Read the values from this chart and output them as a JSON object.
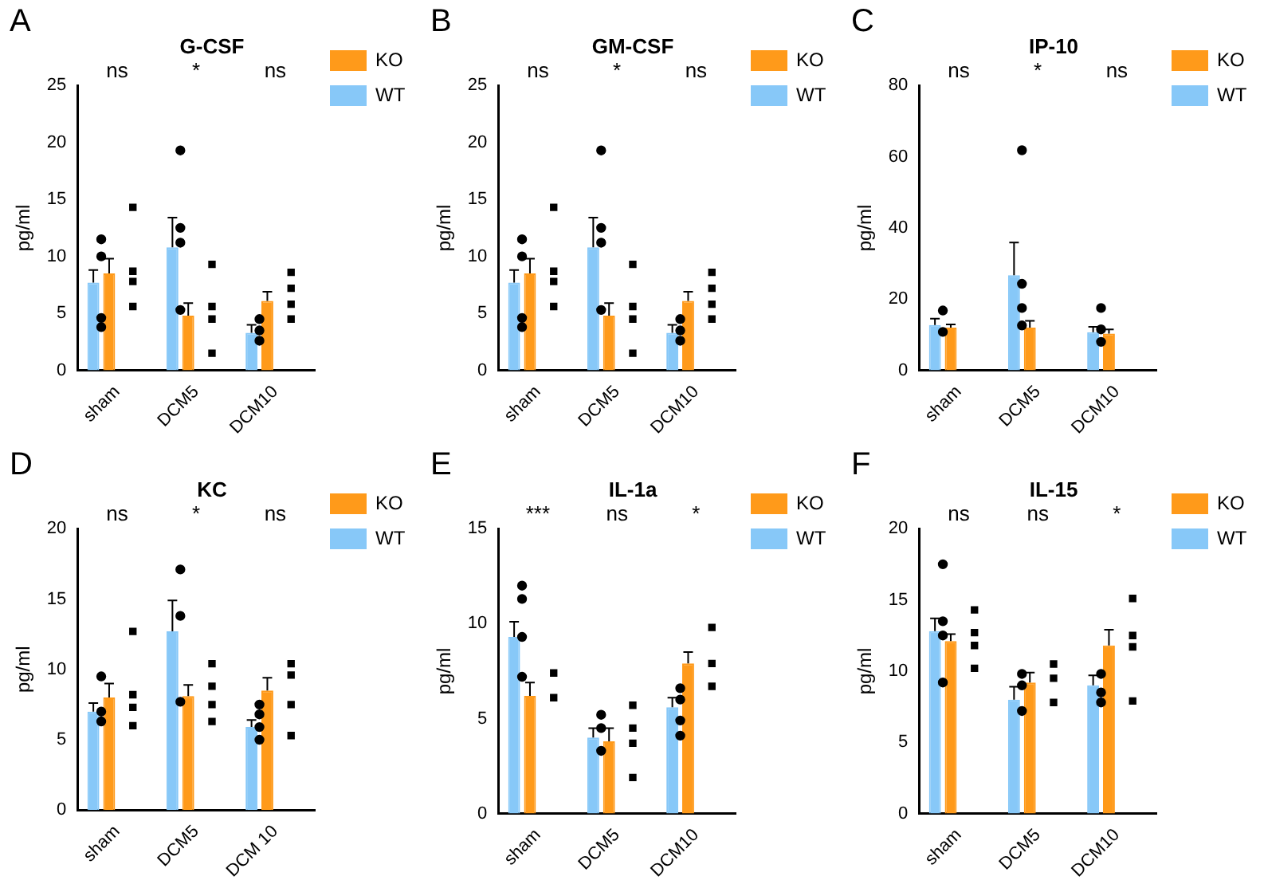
{
  "chart_data": [
    {
      "type": "bar",
      "title": "G-CSF",
      "ylabel": "pg/ml",
      "categories": [
        "sham",
        "DCM5",
        "DCM10"
      ],
      "ylim": [
        0,
        25
      ],
      "yticks": [
        0,
        5,
        10,
        15,
        20,
        25
      ],
      "grid": false,
      "legend": "top right",
      "annotations": [
        "A",
        "ns",
        "*",
        "ns"
      ],
      "series": [
        {
          "name": "WT",
          "color": "#87c8f8",
          "values": [
            7.7,
            10.8,
            3.3
          ],
          "errors": [
            [
              7.7,
              8.8
            ],
            [
              10.8,
              13.4
            ],
            [
              3.3,
              4.0
            ]
          ]
        },
        {
          "name": "KO",
          "color": "#ff9a1a",
          "values": [
            8.5,
            4.8,
            6.1
          ],
          "errors": [
            [
              8.5,
              9.8
            ],
            [
              4.8,
              5.9
            ],
            [
              6.1,
              6.9
            ]
          ]
        },
        {
          "type": "scatter",
          "color": "#000000",
          "marker": "circle",
          "x": [
            "sham",
            "sham",
            "sham",
            "sham",
            "DCM5",
            "DCM5",
            "DCM5",
            "DCM5",
            "DCM10",
            "DCM10",
            "DCM10"
          ],
          "values": [
            11.5,
            10.0,
            4.6,
            3.8,
            19.3,
            12.5,
            11.2,
            5.3,
            4.5,
            3.5,
            2.6
          ]
        },
        {
          "type": "scatter",
          "color": "#000000",
          "marker": "square",
          "x": [
            "sham",
            "sham",
            "sham",
            "sham",
            "DCM5",
            "DCM5",
            "DCM5",
            "DCM5",
            "DCM10",
            "DCM10",
            "DCM10",
            "DCM10"
          ],
          "values": [
            14.3,
            8.7,
            7.8,
            5.6,
            9.3,
            5.6,
            4.5,
            1.5,
            8.6,
            7.2,
            5.8,
            4.5
          ]
        }
      ]
    },
    {
      "type": "bar",
      "title": "GM-CSF",
      "ylabel": "pg/ml",
      "categories": [
        "sham",
        "DCM5",
        "DCM10"
      ],
      "ylim": [
        0,
        25
      ],
      "yticks": [
        0,
        5,
        10,
        15,
        20,
        25
      ],
      "grid": false,
      "legend": "top right",
      "annotations": [
        "B",
        "ns",
        "*",
        "ns"
      ],
      "series": [
        {
          "name": "WT",
          "color": "#87c8f8",
          "values": [
            7.7,
            10.8,
            3.3
          ],
          "errors": [
            [
              7.7,
              8.8
            ],
            [
              10.8,
              13.4
            ],
            [
              3.3,
              4.0
            ]
          ]
        },
        {
          "name": "KO",
          "color": "#ff9a1a",
          "values": [
            8.5,
            4.8,
            6.1
          ],
          "errors": [
            [
              8.5,
              9.8
            ],
            [
              4.8,
              5.9
            ],
            [
              6.1,
              6.9
            ]
          ]
        },
        {
          "type": "scatter",
          "color": "#000000",
          "marker": "circle",
          "x": [
            "sham",
            "sham",
            "sham",
            "sham",
            "DCM5",
            "DCM5",
            "DCM5",
            "DCM5",
            "DCM10",
            "DCM10",
            "DCM10"
          ],
          "values": [
            11.5,
            10.0,
            4.6,
            3.8,
            19.3,
            12.5,
            11.2,
            5.3,
            4.5,
            3.5,
            2.6
          ]
        },
        {
          "type": "scatter",
          "color": "#000000",
          "marker": "square",
          "x": [
            "sham",
            "sham",
            "sham",
            "sham",
            "DCM5",
            "DCM5",
            "DCM5",
            "DCM5",
            "DCM10",
            "DCM10",
            "DCM10",
            "DCM10"
          ],
          "values": [
            14.3,
            8.7,
            7.8,
            5.6,
            9.3,
            5.6,
            4.5,
            1.5,
            8.6,
            7.2,
            5.8,
            4.5
          ]
        }
      ]
    },
    {
      "type": "bar",
      "title": "IP-10",
      "ylabel": "pg/ml",
      "categories": [
        "sham",
        "DCM5",
        "DCM10"
      ],
      "ylim": [
        0,
        80
      ],
      "yticks": [
        0,
        20,
        40,
        60,
        80
      ],
      "grid": false,
      "legend": "top right",
      "annotations": [
        "C",
        "ns",
        "*",
        "ns"
      ],
      "series": [
        {
          "name": "WT",
          "color": "#87c8f8",
          "values": [
            12.7,
            26.7,
            10.7
          ],
          "errors": [
            [
              12.7,
              14.5
            ],
            [
              26.7,
              35.9
            ],
            [
              10.7,
              12.2
            ]
          ]
        },
        {
          "name": "KO",
          "color": "#ff9a1a",
          "values": [
            12.0,
            12.0,
            10.3
          ],
          "errors": [
            [
              12.0,
              12.9
            ],
            [
              12.0,
              13.9
            ],
            [
              10.3,
              11.5
            ]
          ]
        },
        {
          "type": "scatter",
          "color": "#000000",
          "marker": "circle",
          "x": [
            "sham",
            "sham",
            "DCM5",
            "DCM5",
            "DCM5",
            "DCM5",
            "DCM10",
            "DCM10",
            "DCM10"
          ],
          "values": [
            16.8,
            10.8,
            61.8,
            24.3,
            17.5,
            12.6,
            17.5,
            11.5,
            8.0
          ]
        }
      ]
    },
    {
      "type": "bar",
      "title": "KC",
      "ylabel": "pg/ml",
      "categories": [
        "sham",
        "DCM5",
        "DCM 10"
      ],
      "ylim": [
        0,
        20
      ],
      "yticks": [
        0,
        5,
        10,
        15,
        20
      ],
      "grid": false,
      "legend": "top right",
      "annotations": [
        "D",
        "ns",
        "*",
        "ns"
      ],
      "series": [
        {
          "name": "WT",
          "color": "#87c8f8",
          "values": [
            7.0,
            12.7,
            5.9
          ],
          "errors": [
            [
              7.0,
              7.6
            ],
            [
              12.7,
              14.9
            ],
            [
              5.9,
              6.4
            ]
          ]
        },
        {
          "name": "KO",
          "color": "#ff9a1a",
          "values": [
            8.0,
            8.1,
            8.5
          ],
          "errors": [
            [
              8.0,
              9.0
            ],
            [
              8.1,
              8.9
            ],
            [
              8.5,
              9.4
            ]
          ]
        },
        {
          "type": "scatter",
          "color": "#000000",
          "marker": "circle",
          "x": [
            "sham",
            "sham",
            "sham",
            "DCM5",
            "DCM5",
            "DCM5",
            "DCM 10",
            "DCM 10",
            "DCM 10",
            "DCM 10"
          ],
          "values": [
            9.5,
            7.0,
            6.3,
            17.1,
            13.8,
            7.7,
            7.5,
            6.8,
            5.9,
            5.0
          ]
        },
        {
          "type": "scatter",
          "color": "#000000",
          "marker": "square",
          "x": [
            "sham",
            "sham",
            "sham",
            "sham",
            "DCM5",
            "DCM5",
            "DCM5",
            "DCM5",
            "DCM 10",
            "DCM 10",
            "DCM 10",
            "DCM 10"
          ],
          "values": [
            12.7,
            8.2,
            7.3,
            6.0,
            10.4,
            8.8,
            7.5,
            6.3,
            10.4,
            9.6,
            7.5,
            5.3
          ]
        }
      ]
    },
    {
      "type": "bar",
      "title": "IL-1a",
      "ylabel": "pg/ml",
      "categories": [
        "sham",
        "DCM5",
        "DCM10"
      ],
      "ylim": [
        0,
        15
      ],
      "yticks": [
        0,
        5,
        10,
        15
      ],
      "grid": false,
      "legend": "top right",
      "annotations": [
        "E",
        "***",
        "ns",
        "*"
      ],
      "series": [
        {
          "name": "WT",
          "color": "#87c8f8",
          "values": [
            9.3,
            4.0,
            5.6
          ],
          "errors": [
            [
              9.3,
              10.1
            ],
            [
              4.0,
              4.5
            ],
            [
              5.6,
              6.1
            ]
          ]
        },
        {
          "name": "KO",
          "color": "#ff9a1a",
          "values": [
            6.2,
            3.8,
            7.9
          ],
          "errors": [
            [
              6.2,
              6.9
            ],
            [
              3.8,
              4.5
            ],
            [
              7.9,
              8.5
            ]
          ]
        },
        {
          "type": "scatter",
          "color": "#000000",
          "marker": "circle",
          "x": [
            "sham",
            "sham",
            "sham",
            "sham",
            "DCM5",
            "DCM5",
            "DCM5",
            "DCM10",
            "DCM10",
            "DCM10",
            "DCM10"
          ],
          "values": [
            12.0,
            11.3,
            9.3,
            7.2,
            5.2,
            4.5,
            3.3,
            6.6,
            6.0,
            4.9,
            4.1
          ]
        },
        {
          "type": "scatter",
          "color": "#000000",
          "marker": "square",
          "x": [
            "sham",
            "sham",
            "DCM5",
            "DCM5",
            "DCM5",
            "DCM5",
            "DCM10",
            "DCM10",
            "DCM10"
          ],
          "values": [
            7.4,
            6.1,
            5.7,
            4.5,
            3.7,
            1.9,
            9.8,
            7.9,
            6.7
          ]
        }
      ]
    },
    {
      "type": "bar",
      "title": "IL-15",
      "ylabel": "pg/ml",
      "categories": [
        "sham",
        "DCM5",
        "DCM10"
      ],
      "ylim": [
        0,
        20
      ],
      "yticks": [
        0,
        5,
        10,
        15,
        20
      ],
      "grid": false,
      "legend": "top right",
      "annotations": [
        "F",
        "ns",
        "ns",
        "*"
      ],
      "series": [
        {
          "name": "WT",
          "color": "#87c8f8",
          "values": [
            12.8,
            8.0,
            9.0
          ],
          "errors": [
            [
              12.8,
              13.7
            ],
            [
              8.0,
              8.9
            ],
            [
              9.0,
              9.7
            ]
          ]
        },
        {
          "name": "KO",
          "color": "#ff9a1a",
          "values": [
            12.1,
            9.2,
            11.8
          ],
          "errors": [
            [
              12.1,
              12.6
            ],
            [
              9.2,
              9.9
            ],
            [
              11.8,
              12.9
            ]
          ]
        },
        {
          "type": "scatter",
          "color": "#000000",
          "marker": "circle",
          "x": [
            "sham",
            "sham",
            "sham",
            "sham",
            "DCM5",
            "DCM5",
            "DCM5",
            "DCM10",
            "DCM10",
            "DCM10"
          ],
          "values": [
            17.5,
            13.5,
            12.5,
            9.2,
            9.8,
            9.0,
            7.2,
            9.8,
            8.5,
            7.8
          ]
        },
        {
          "type": "scatter",
          "color": "#000000",
          "marker": "square",
          "x": [
            "sham",
            "sham",
            "sham",
            "sham",
            "DCM5",
            "DCM5",
            "DCM5",
            "DCM10",
            "DCM10",
            "DCM10",
            "DCM10"
          ],
          "values": [
            14.3,
            12.7,
            11.8,
            10.2,
            10.5,
            9.5,
            7.8,
            15.1,
            12.5,
            11.7,
            7.9
          ]
        }
      ]
    }
  ]
}
